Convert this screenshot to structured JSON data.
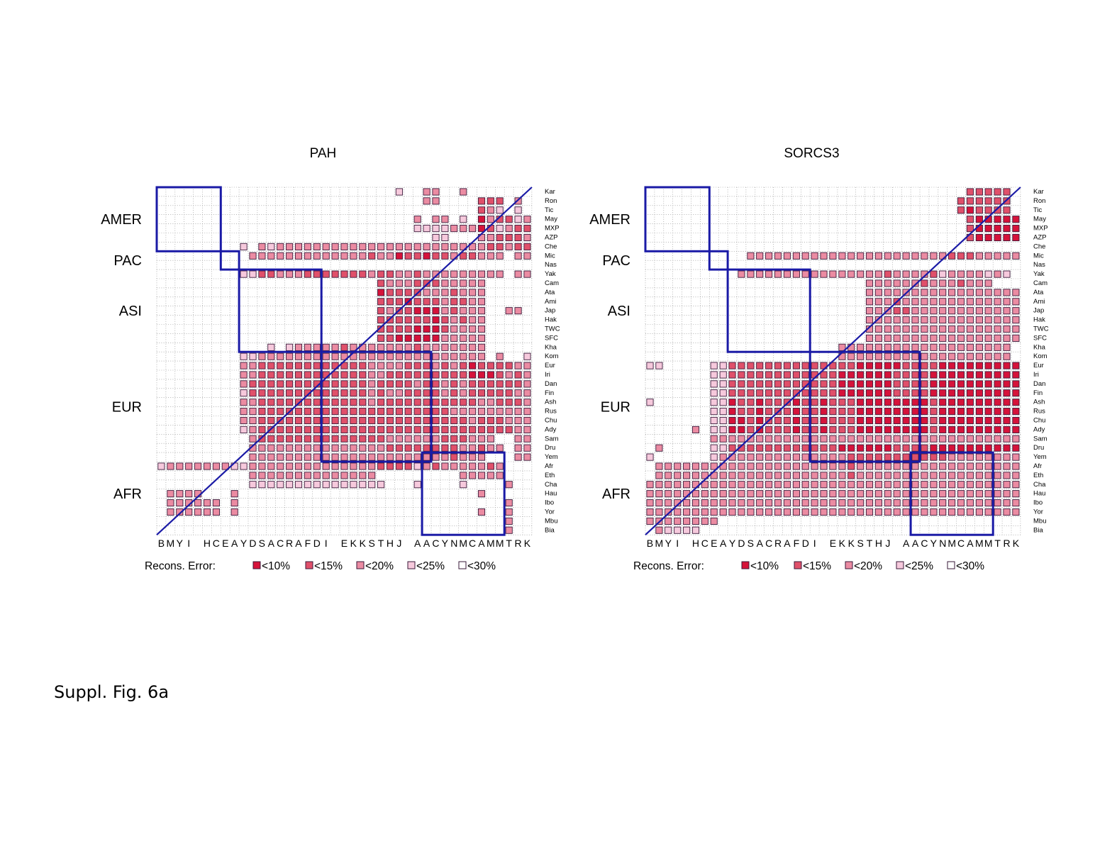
{
  "figure": {
    "caption": "Suppl. Fig. 6a",
    "legend": {
      "title": "Recons. Error:",
      "items": [
        {
          "label": "<10%",
          "color": "#d6133a"
        },
        {
          "label": "<15%",
          "color": "#e0506a"
        },
        {
          "label": "<20%",
          "color": "#eb8ba2"
        },
        {
          "label": "<25%",
          "color": "#f6c9dc"
        },
        {
          "label": "<30%",
          "color": "#ffffff"
        }
      ]
    },
    "colors": {
      "box_line": "#1a1aa6",
      "border": "#3a1a3a",
      "dot_grid": "#888888"
    }
  },
  "chart_data": {
    "type": "heatmap",
    "row_labels": [
      "Kar",
      "Ron",
      "Tic",
      "May",
      "MXP",
      "AZP",
      "Che",
      "Mic",
      "Nas",
      "Yak",
      "Cam",
      "Ata",
      "Ami",
      "Jap",
      "Hak",
      "TWC",
      "SFC",
      "Kha",
      "Kom",
      "Eur",
      "Iri",
      "Dan",
      "Fin",
      "Ash",
      "Rus",
      "Chu",
      "Ady",
      "Sam",
      "Dru",
      "Yem",
      "Afr",
      "Eth",
      "Cha",
      "Hau",
      "Ibo",
      "Yor",
      "Mbu",
      "Bia"
    ],
    "col_labels": [
      "B",
      "M",
      "Y",
      "I",
      "",
      "H",
      "C",
      "E",
      "A",
      "Y",
      "D",
      "S",
      "A",
      "C",
      "R",
      "A",
      "F",
      "D",
      "I",
      "",
      "E",
      "K",
      "K",
      "S",
      "T",
      "H",
      "J",
      "",
      "A",
      "A",
      "C",
      "Y",
      "N",
      "M",
      "C",
      "A",
      "M",
      "M",
      "T",
      "R",
      "K"
    ],
    "col_labels_text": "B M Y I   H C E A Y D S A C R A F D I   E K K S T H J   A A C Y N M C A M M T R K",
    "groups": [
      {
        "label": "AMER",
        "row_from": 0,
        "row_to": 6
      },
      {
        "label": "PAC",
        "row_from": 7,
        "row_to": 8
      },
      {
        "label": "ASI",
        "row_from": 9,
        "row_to": 17
      },
      {
        "label": "EUR",
        "row_from": 18,
        "row_to": 29
      },
      {
        "label": "AFR",
        "row_from": 29,
        "row_to": 37
      }
    ],
    "levels": [
      "<10%",
      "<15%",
      "<20%",
      "<25%",
      "<30%"
    ],
    "panels": [
      {
        "title": "PAH",
        "boxes": [
          {
            "region": "AMER",
            "from": 0,
            "to": 6
          },
          {
            "region": "PAC",
            "from": 7,
            "to": 8
          },
          {
            "region": "ASI",
            "from": 9,
            "to": 17
          },
          {
            "region": "EUR",
            "from": 18,
            "to": 29
          },
          {
            "region": "AFR",
            "from": 29,
            "to": 37
          }
        ],
        "matrix": [
          "00000000000000000000000000400330030000000",
          "00000000000000000000000000000330000222030",
          "00000000000000000000000000000000000234040",
          "00000000000000000000000000003033040132243",
          "00000000000000000000000000004444333124322",
          "00000000000000000000000000000044000332223",
          "00000000040343333333333333333333333322322",
          "00000000003333333333333233122122322333033",
          "00000000000000000000000000000000000000000",
          "00000000044223332222222322332333333333033",
          "00000000000000000000000023332223333300000",
          "00000000000000000000000012222333233300000",
          "00000000000000000000000022212223223300000",
          "00000000000000000000000023221113233300330",
          "00000000000000000000000022222212323300000",
          "00000000000000000000000022221112333300000",
          "00000000000000000000000022111113333300000",
          "00000000000040433333233333332333333300000",
          "00000000044333333333333333333333333303004",
          "00000000033222222222222333322232321222233",
          "00000000033222222222222332222222221112323",
          "00000000032222222222222322223223232222223",
          "00000000042222222222222323322223232222233",
          "00000000033222222222222322222222222332223",
          "00000000033222222222222222222222333333333",
          "00000000033222222222222222222222223222333",
          "00000000043222222222222222222222222222233",
          "00000000003222222222222223333332223330033",
          "00000000003333333333333332222222233233033",
          "00000000003333333333333333333333233300033",
          "43333333443333333333333322224323333323000",
          "00000000003333333333333300000000033333000",
          "00000000004444444444444440004000040000300",
          "03333000300000000000000000000000000300000",
          "03333330300000000000000000000000000000300",
          "03333330300000000000000000000000000300300",
          "00000000000000000000000000000000000000300",
          "00000000000000000000000000000000000000300"
        ]
      },
      {
        "title": "SORCS3",
        "boxes": [
          {
            "region": "AMER",
            "from": 0,
            "to": 6
          },
          {
            "region": "PAC",
            "from": 7,
            "to": 8
          },
          {
            "region": "ASI",
            "from": 9,
            "to": 17
          },
          {
            "region": "EUR",
            "from": 18,
            "to": 29
          },
          {
            "region": "AFR",
            "from": 29,
            "to": 37
          }
        ],
        "matrix": [
          "00000000000000000000000000000000000222220",
          "00000000000000000000000000000000002222220",
          "00000000000000000000000000000000002122220",
          "00000000000000000000000000000000000211111",
          "00000000000000000000000000000000000211111",
          "00000000000000000000000000000000000211111",
          "00000000000000000000000000000000000000000",
          "00000000000333333333333333333333322233333",
          "00000000000000000000000000000000000000000",
          "00000000003333333333333333233332433334340",
          "00000000000000000000000033333323332333000",
          "00000000000000000000000033333333333333333",
          "00000000000000000000000033323333333333333",
          "00000000000000000000000033322333333333333",
          "00000000000000000000000033333333333333333",
          "00000000000000000000000033333333333333333",
          "00000000000000000000000033333333333333333",
          "00000000000000000000033333333333333333330",
          "00000000000000000000033333333333333333330",
          "44000004422222222222222111112222111111111",
          "00000004422222222222211111122221111111111",
          "00000004422222222222211111122221111111111",
          "00000004422222222222211111122221111111111",
          "40000004412212221221222111111112111111111",
          "00000004412212221221222111111112111111111",
          "00000004411212221221222111111112111111111",
          "00000304411212221221222111111112111111111",
          "00000003333333333333333333333333333333333",
          "03000004422222222222211111122221111111111",
          "40000004333333333333332222222222233333333",
          "03333333333333333333332333333333333333333",
          "03333333333333333333332333333333333333333",
          "33333333333333333333333333333333333333333",
          "33333333333333333333333333333333333333333",
          "33333333333333333333333333333333333333333",
          "33333333333333333333333333333333333333333",
          "33333333000000000000000000000000000000000",
          "03444400000000000000000000000000000000000"
        ]
      }
    ]
  }
}
